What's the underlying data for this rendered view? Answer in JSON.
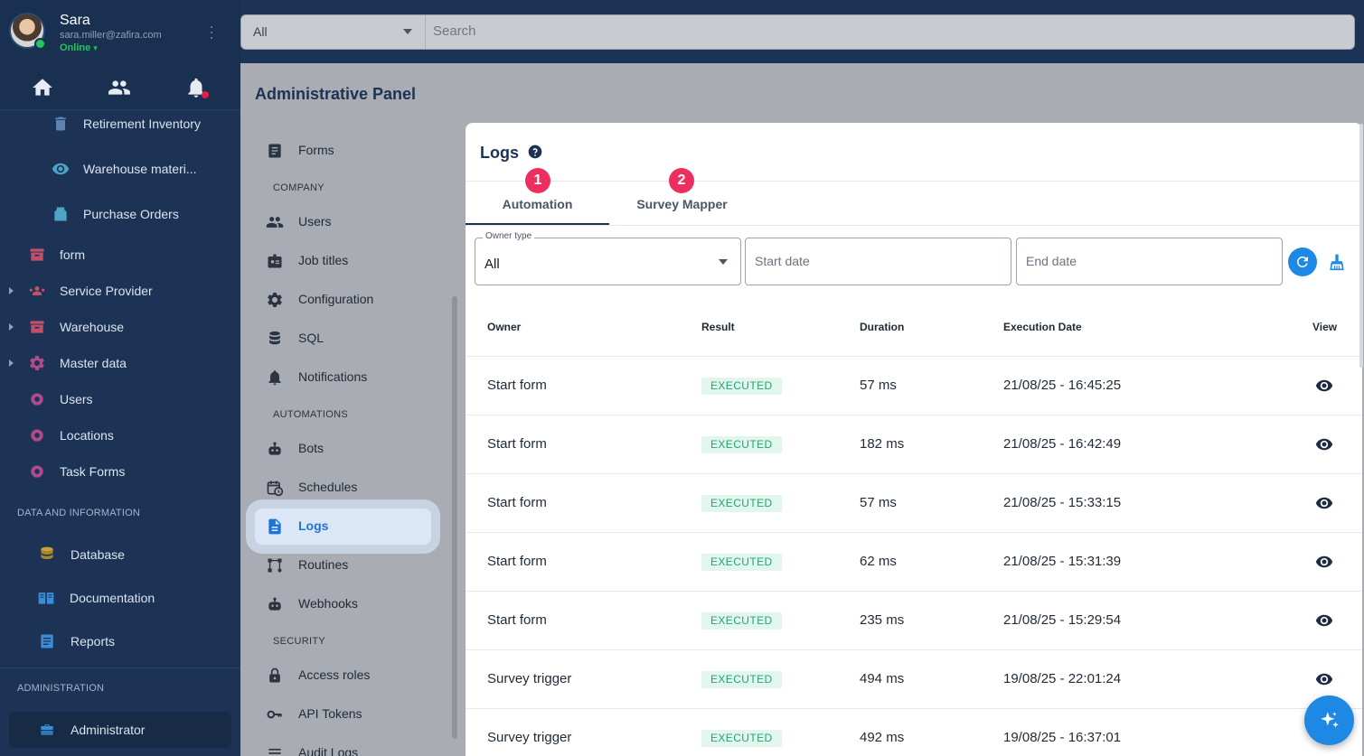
{
  "user": {
    "name": "Sara",
    "email": "sara.miller@zafira.com",
    "status": "Online"
  },
  "sidebar": {
    "items": [
      {
        "label": "Retirement Inventory",
        "icon": "trash-icon"
      },
      {
        "label": "Warehouse materi...",
        "icon": "eye-icon"
      },
      {
        "label": "Purchase Orders",
        "icon": "basket-icon"
      },
      {
        "label": "form",
        "icon": "box-icon"
      },
      {
        "label": "Service Provider",
        "icon": "people-icon"
      },
      {
        "label": "Warehouse",
        "icon": "box-icon"
      },
      {
        "label": "Master data",
        "icon": "gear-icon"
      },
      {
        "label": "Users",
        "icon": "gear-icon"
      },
      {
        "label": "Locations",
        "icon": "gear-icon"
      },
      {
        "label": "Task Forms",
        "icon": "gear-icon"
      }
    ],
    "data_section": "DATA AND INFORMATION",
    "data_items": [
      {
        "label": "Database",
        "icon": "database-icon"
      },
      {
        "label": "Documentation",
        "icon": "book-icon"
      },
      {
        "label": "Reports",
        "icon": "report-icon"
      }
    ],
    "admin_section": "ADMINISTRATION",
    "admin_item": "Administrator"
  },
  "search": {
    "scope": "All",
    "placeholder": "Search"
  },
  "admin": {
    "title": "Administrative Panel",
    "nav": {
      "forms": "Forms",
      "company_section": "COMPANY",
      "users": "Users",
      "job_titles": "Job titles",
      "configuration": "Configuration",
      "sql": "SQL",
      "notifications": "Notifications",
      "automations_section": "AUTOMATIONS",
      "bots": "Bots",
      "schedules": "Schedules",
      "logs": "Logs",
      "routines": "Routines",
      "webhooks": "Webhooks",
      "security_section": "SECURITY",
      "access_roles": "Access roles",
      "api_tokens": "API Tokens",
      "audit_logs": "Audit Logs"
    }
  },
  "logs": {
    "title": "Logs",
    "tabs": [
      "Automation",
      "Survey Mapper"
    ],
    "badges": [
      "1",
      "2"
    ],
    "filters": {
      "owner_type_label": "Owner type",
      "owner_type_value": "All",
      "start_date_placeholder": "Start date",
      "end_date_placeholder": "End date"
    },
    "columns": [
      "Owner",
      "Result",
      "Duration",
      "Execution Date",
      "View"
    ],
    "rows": [
      {
        "owner": "Start form",
        "result": "EXECUTED",
        "duration": "57 ms",
        "date": "21/08/25 - 16:45:25"
      },
      {
        "owner": "Start form",
        "result": "EXECUTED",
        "duration": "182 ms",
        "date": "21/08/25 - 16:42:49"
      },
      {
        "owner": "Start form",
        "result": "EXECUTED",
        "duration": "57 ms",
        "date": "21/08/25 - 15:33:15"
      },
      {
        "owner": "Start form",
        "result": "EXECUTED",
        "duration": "62 ms",
        "date": "21/08/25 - 15:31:39"
      },
      {
        "owner": "Start form",
        "result": "EXECUTED",
        "duration": "235 ms",
        "date": "21/08/25 - 15:29:54"
      },
      {
        "owner": "Survey trigger",
        "result": "EXECUTED",
        "duration": "494 ms",
        "date": "19/08/25 - 22:01:24"
      },
      {
        "owner": "Survey trigger",
        "result": "EXECUTED",
        "duration": "492 ms",
        "date": "19/08/25 - 16:37:01"
      }
    ]
  },
  "colors": {
    "sidebar_bg": "#1c3355",
    "accent": "#1e88e5",
    "badge": "#ec2f5f",
    "status_green": "#1ea672"
  }
}
